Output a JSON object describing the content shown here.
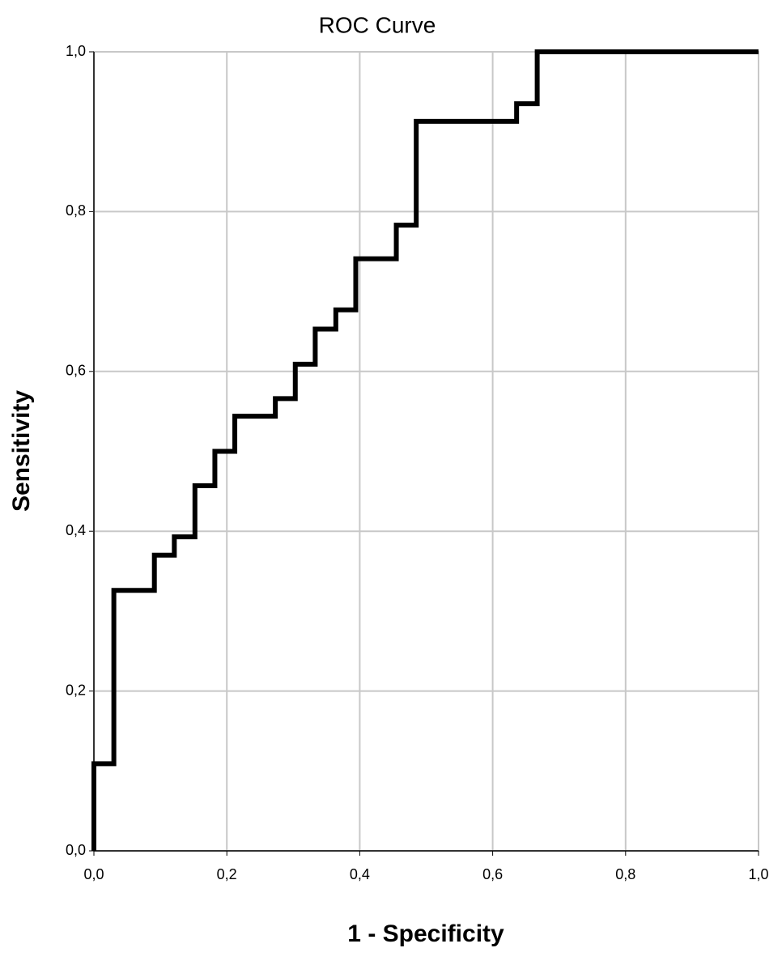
{
  "chart_data": {
    "type": "line",
    "title": "ROC Curve",
    "x_label": "1 - Specificity",
    "y_label": "Sensitivity",
    "x": [
      0,
      0,
      0.03,
      0.03,
      0.091,
      0.091,
      0.121,
      0.121,
      0.152,
      0.152,
      0.182,
      0.182,
      0.212,
      0.212,
      0.273,
      0.273,
      0.303,
      0.303,
      0.333,
      0.333,
      0.364,
      0.364,
      0.394,
      0.394,
      0.455,
      0.455,
      0.485,
      0.485,
      0.636,
      0.636,
      0.667,
      0.667,
      1
    ],
    "values": [
      0,
      0.109,
      0.109,
      0.326,
      0.326,
      0.37,
      0.37,
      0.393,
      0.393,
      0.457,
      0.457,
      0.5,
      0.5,
      0.544,
      0.544,
      0.566,
      0.566,
      0.609,
      0.609,
      0.653,
      0.653,
      0.677,
      0.677,
      0.741,
      0.741,
      0.783,
      0.783,
      0.913,
      0.913,
      0.935,
      0.935,
      1,
      1
    ],
    "color": "#000000",
    "xlim": [
      0,
      1
    ],
    "ylim": [
      0,
      1
    ],
    "xticks": [
      {
        "value": 0,
        "label": "0,0"
      },
      {
        "value": 0.2,
        "label": "0,2"
      },
      {
        "value": 0.4,
        "label": "0,4"
      },
      {
        "value": 0.6,
        "label": "0,6"
      },
      {
        "value": 0.8,
        "label": "0,8"
      },
      {
        "value": 1,
        "label": "1,0"
      }
    ],
    "yticks": [
      {
        "value": 0,
        "label": "0,0"
      },
      {
        "value": 0.2,
        "label": "0,2"
      },
      {
        "value": 0.4,
        "label": "0,4"
      },
      {
        "value": 0.6,
        "label": "0,6"
      },
      {
        "value": 0.8,
        "label": "0,8"
      },
      {
        "value": 1,
        "label": "1,0"
      }
    ],
    "grid": true
  }
}
